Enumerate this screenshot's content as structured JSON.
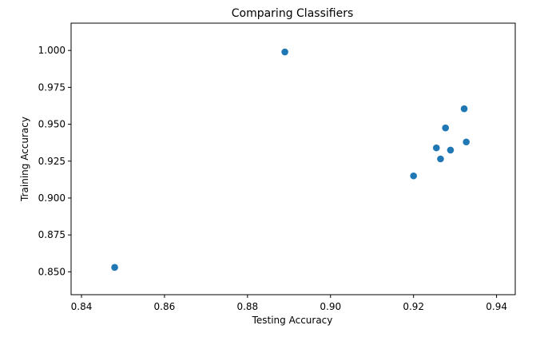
{
  "chart_data": {
    "type": "scatter",
    "title": "Comparing Classifiers",
    "xlabel": "Testing Accuracy",
    "ylabel": "Training Accuracy",
    "xlim": [
      0.8375,
      0.9445
    ],
    "ylim": [
      0.8345,
      1.0185
    ],
    "xticks": [
      0.84,
      0.86,
      0.88,
      0.9,
      0.92,
      0.94
    ],
    "xtick_labels": [
      "0.84",
      "0.86",
      "0.88",
      "0.90",
      "0.92",
      "0.94"
    ],
    "yticks": [
      0.85,
      0.875,
      0.9,
      0.925,
      0.95,
      0.975,
      1.0
    ],
    "ytick_labels": [
      "0.850",
      "0.875",
      "0.900",
      "0.925",
      "0.950",
      "0.975",
      "1.000"
    ],
    "grid": false,
    "marker_color": "#1f77b4",
    "points": [
      {
        "x": 0.848,
        "y": 0.853
      },
      {
        "x": 0.889,
        "y": 0.999
      },
      {
        "x": 0.92,
        "y": 0.915
      },
      {
        "x": 0.9255,
        "y": 0.934
      },
      {
        "x": 0.9265,
        "y": 0.9265
      },
      {
        "x": 0.9277,
        "y": 0.9475
      },
      {
        "x": 0.9289,
        "y": 0.9325
      },
      {
        "x": 0.9322,
        "y": 0.9605
      },
      {
        "x": 0.9327,
        "y": 0.938
      }
    ]
  }
}
